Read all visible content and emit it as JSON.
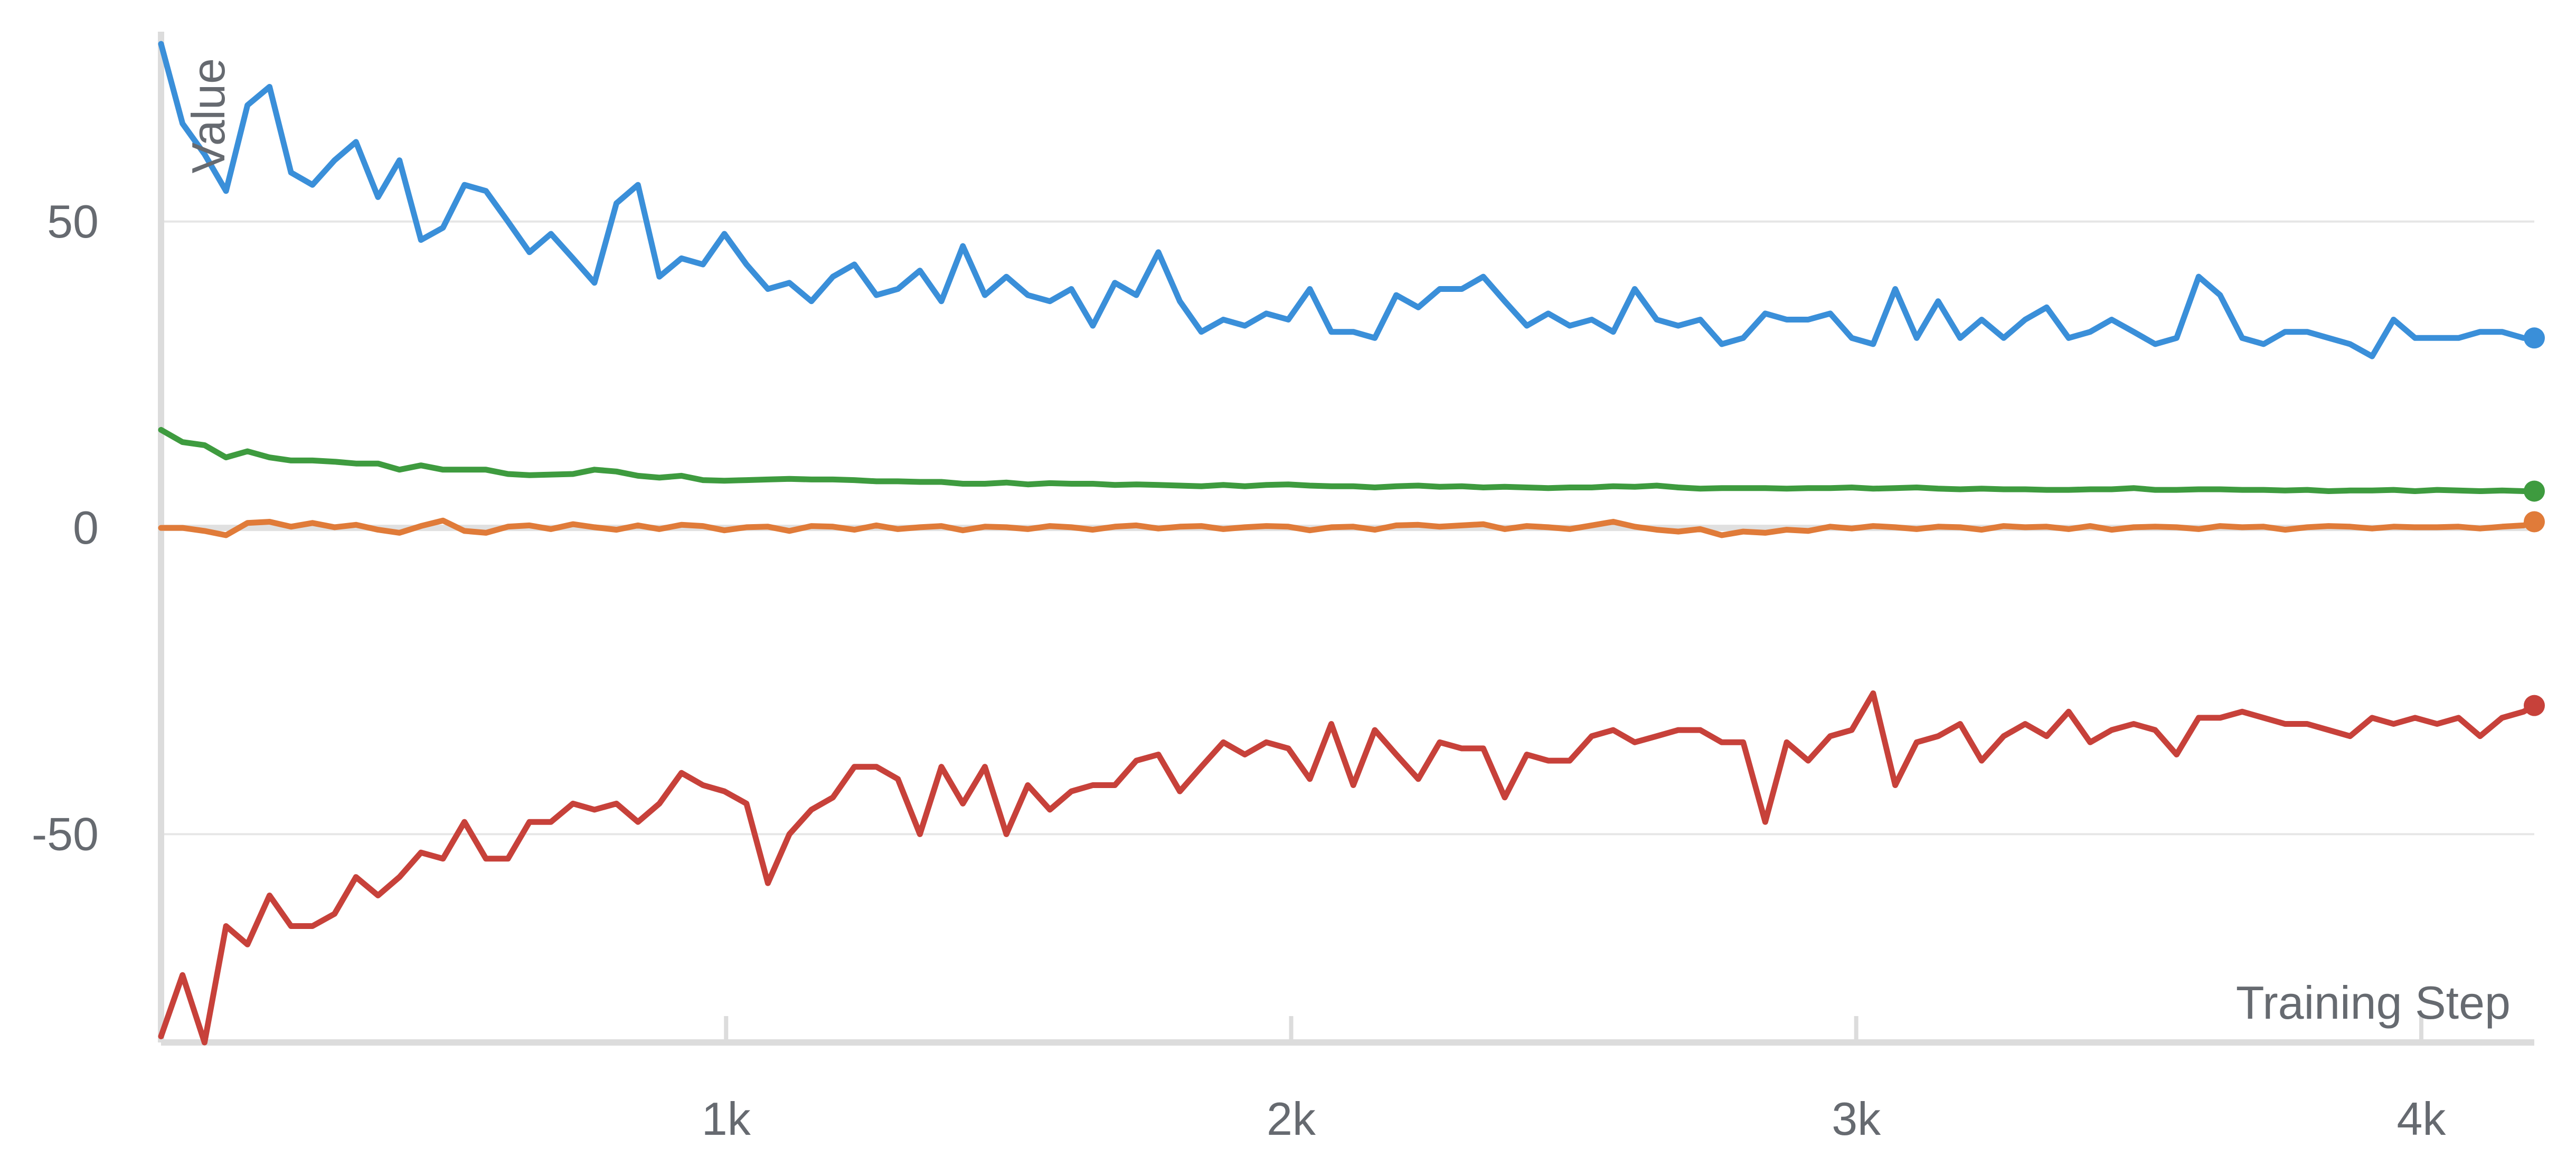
{
  "chart_data": {
    "type": "line",
    "xlabel": "Training Step",
    "ylabel": "Value",
    "xlim": [
      0,
      4200
    ],
    "ylim": [
      -84,
      81
    ],
    "x_ticks": [
      {
        "value": 1000,
        "label": "1k"
      },
      {
        "value": 2000,
        "label": "2k"
      },
      {
        "value": 3000,
        "label": "3k"
      },
      {
        "value": 4000,
        "label": "4k"
      }
    ],
    "y_ticks": [
      {
        "value": 50,
        "label": "50"
      },
      {
        "value": 0,
        "label": "0"
      },
      {
        "value": -50,
        "label": "-50"
      }
    ],
    "grid": true,
    "legend": "none",
    "x": [
      0,
      38,
      77,
      115,
      153,
      192,
      230,
      268,
      307,
      345,
      384,
      422,
      460,
      499,
      537,
      575,
      614,
      652,
      690,
      729,
      767,
      806,
      844,
      882,
      921,
      959,
      997,
      1036,
      1074,
      1112,
      1151,
      1189,
      1227,
      1266,
      1304,
      1343,
      1381,
      1419,
      1458,
      1496,
      1534,
      1573,
      1611,
      1649,
      1688,
      1726,
      1765,
      1803,
      1841,
      1880,
      1918,
      1956,
      1995,
      2033,
      2071,
      2110,
      2148,
      2186,
      2225,
      2263,
      2302,
      2340,
      2378,
      2417,
      2455,
      2493,
      2532,
      2570,
      2608,
      2647,
      2685,
      2724,
      2762,
      2800,
      2839,
      2877,
      2915,
      2954,
      2992,
      3030,
      3069,
      3107,
      3145,
      3184,
      3222,
      3261,
      3299,
      3337,
      3376,
      3414,
      3452,
      3491,
      3529,
      3567,
      3606,
      3644,
      3683,
      3721,
      3759,
      3798,
      3836,
      3874,
      3913,
      3951,
      3989,
      4028,
      4066,
      4104,
      4143,
      4181,
      4200
    ],
    "series": [
      {
        "color": "#3a8fd9",
        "values": [
          79,
          66,
          61,
          55,
          69,
          72,
          58,
          56,
          60,
          63,
          54,
          60,
          47,
          49,
          56,
          55,
          50,
          45,
          48,
          44,
          40,
          53,
          56,
          41,
          44,
          43,
          48,
          43,
          39,
          40,
          37,
          41,
          43,
          38,
          39,
          42,
          37,
          46,
          38,
          41,
          38,
          37,
          39,
          33,
          40,
          38,
          45,
          37,
          32,
          34,
          33,
          35,
          34,
          39,
          32,
          32,
          31,
          38,
          36,
          39,
          39,
          41,
          37,
          33,
          35,
          33,
          34,
          32,
          39,
          34,
          33,
          34,
          30,
          31,
          35,
          34,
          34,
          35,
          31,
          30,
          39,
          31,
          37,
          31,
          34,
          31,
          34,
          36,
          31,
          32,
          34,
          32,
          30,
          31,
          41,
          38,
          31,
          30,
          32,
          32,
          31,
          30,
          28,
          34,
          31,
          31,
          31,
          32,
          32,
          31,
          31
        ]
      },
      {
        "color": "#3e9b3f",
        "values": [
          16,
          14,
          13.5,
          11.5,
          12.5,
          11.5,
          11,
          11,
          10.8,
          10.5,
          10.5,
          9.5,
          10.2,
          9.5,
          9.5,
          9.5,
          8.8,
          8.6,
          8.7,
          8.8,
          9.5,
          9.2,
          8.5,
          8.2,
          8.5,
          7.8,
          7.7,
          7.8,
          7.9,
          8.0,
          7.9,
          7.9,
          7.8,
          7.6,
          7.6,
          7.5,
          7.5,
          7.2,
          7.2,
          7.4,
          7.1,
          7.3,
          7.2,
          7.2,
          7.0,
          7.1,
          7.0,
          6.9,
          6.8,
          7.0,
          6.8,
          7.0,
          7.1,
          6.9,
          6.8,
          6.8,
          6.6,
          6.8,
          6.9,
          6.7,
          6.8,
          6.6,
          6.7,
          6.6,
          6.5,
          6.6,
          6.6,
          6.8,
          6.7,
          6.9,
          6.6,
          6.4,
          6.5,
          6.5,
          6.5,
          6.4,
          6.5,
          6.5,
          6.6,
          6.4,
          6.5,
          6.6,
          6.4,
          6.3,
          6.4,
          6.3,
          6.3,
          6.2,
          6.2,
          6.3,
          6.3,
          6.5,
          6.2,
          6.2,
          6.3,
          6.3,
          6.2,
          6.2,
          6.1,
          6.2,
          6.0,
          6.1,
          6.1,
          6.2,
          6.0,
          6.2,
          6.1,
          6.0,
          6.1,
          6.0,
          6.0
        ]
      },
      {
        "color": "#e07b39",
        "values": [
          0,
          0,
          -0.5,
          -1.2,
          0.8,
          1.0,
          0.2,
          0.8,
          0.1,
          0.5,
          -0.3,
          -0.8,
          0.3,
          1.2,
          -0.5,
          -0.8,
          0.2,
          0.4,
          -0.2,
          0.6,
          0.1,
          -0.3,
          0.4,
          -0.2,
          0.5,
          0.3,
          -0.4,
          0.1,
          0.2,
          -0.5,
          0.3,
          0.2,
          -0.3,
          0.4,
          -0.2,
          0.1,
          0.3,
          -0.4,
          0.2,
          0.1,
          -0.2,
          0.3,
          0.1,
          -0.3,
          0.2,
          0.4,
          -0.1,
          0.2,
          0.3,
          -0.2,
          0.1,
          0.3,
          0.2,
          -0.4,
          0.1,
          0.2,
          -0.3,
          0.4,
          0.5,
          0.2,
          0.4,
          0.6,
          -0.2,
          0.3,
          0.1,
          -0.2,
          0.4,
          1.0,
          0.2,
          -0.3,
          -0.6,
          -0.2,
          -1.2,
          -0.6,
          -0.8,
          -0.3,
          -0.5,
          0.2,
          -0.1,
          0.3,
          0.1,
          -0.2,
          0.2,
          0.1,
          -0.3,
          0.3,
          0.1,
          0.2,
          -0.2,
          0.3,
          -0.3,
          0.1,
          0.2,
          0.1,
          -0.2,
          0.3,
          0.1,
          0.2,
          -0.3,
          0.1,
          0.3,
          0.2,
          -0.1,
          0.2,
          0.1,
          0.1,
          0.2,
          -0.1,
          0.2,
          0.4,
          1.0
        ]
      },
      {
        "color": "#c7413a",
        "values": [
          -83,
          -73,
          -84,
          -65,
          -68,
          -60,
          -65,
          -65,
          -63,
          -57,
          -60,
          -57,
          -53,
          -54,
          -48,
          -54,
          -54,
          -48,
          -48,
          -45,
          -46,
          -45,
          -48,
          -45,
          -40,
          -42,
          -43,
          -45,
          -58,
          -50,
          -46,
          -44,
          -39,
          -39,
          -41,
          -50,
          -39,
          -45,
          -39,
          -50,
          -42,
          -46,
          -43,
          -42,
          -42,
          -38,
          -37,
          -43,
          -39,
          -35,
          -37,
          -35,
          -36,
          -41,
          -32,
          -42,
          -33,
          -37,
          -41,
          -35,
          -36,
          -36,
          -44,
          -37,
          -38,
          -38,
          -34,
          -33,
          -35,
          -34,
          -33,
          -33,
          -35,
          -35,
          -48,
          -35,
          -38,
          -34,
          -33,
          -27,
          -42,
          -35,
          -34,
          -32,
          -38,
          -34,
          -32,
          -34,
          -30,
          -35,
          -33,
          -32,
          -33,
          -37,
          -31,
          -31,
          -30,
          -31,
          -32,
          -32,
          -33,
          -34,
          -31,
          -32,
          -31,
          -32,
          -31,
          -34,
          -31,
          -30,
          -29
        ]
      }
    ]
  }
}
